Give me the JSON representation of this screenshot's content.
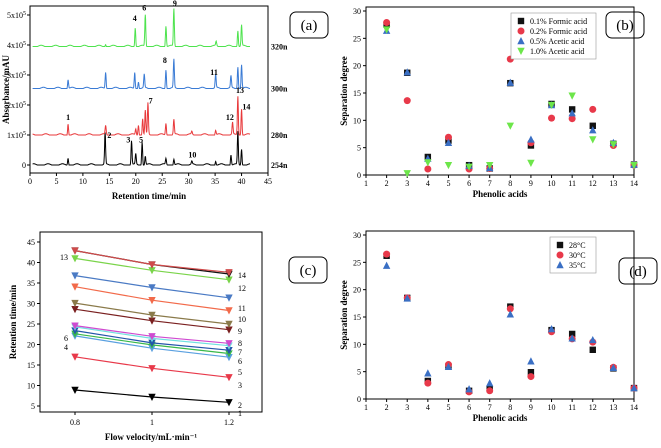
{
  "chart_data": [
    {
      "type": "line",
      "panel_label": "(a)",
      "xlabel": "Retention time/min",
      "ylabel": "Absorbance/mAU",
      "xlim": [
        0,
        45
      ],
      "xticks": [
        "0",
        "5",
        "10",
        "15",
        "20",
        "25",
        "30",
        "35",
        "40",
        "45"
      ],
      "yticks": [
        "0",
        "1x10^5",
        "2x10^5",
        "3x10^5",
        "4x10^5",
        "5x10^5"
      ],
      "series": [
        {
          "name": "254n",
          "color": "#000000",
          "offset": 0,
          "peaks": [
            [
              7.2,
              0.25
            ],
            [
              14.2,
              1.05
            ],
            [
              19.2,
              0.8
            ],
            [
              20.0,
              0.35
            ],
            [
              21.2,
              0.8
            ],
            [
              21.8,
              0.3
            ],
            [
              25.7,
              0.2
            ],
            [
              27.2,
              0.2
            ],
            [
              30.6,
              0.1
            ],
            [
              35.1,
              0.15
            ],
            [
              38.0,
              0.35
            ],
            [
              39.3,
              1.1
            ],
            [
              40.0,
              0.55
            ]
          ]
        },
        {
          "name": "280n",
          "color": "#e8393b",
          "offset": 1.0,
          "peaks": [
            [
              7.2,
              0.4
            ],
            [
              14.3,
              0.3
            ],
            [
              20.0,
              0.2
            ],
            [
              20.5,
              0.35
            ],
            [
              21.3,
              0.55
            ],
            [
              21.8,
              0.8
            ],
            [
              22.3,
              1.05
            ],
            [
              25.7,
              0.4
            ],
            [
              27.2,
              0.5
            ],
            [
              30.6,
              0.1
            ],
            [
              35.1,
              0.15
            ],
            [
              38.3,
              0.4
            ],
            [
              39.3,
              1.3
            ],
            [
              40.0,
              0.9
            ]
          ]
        },
        {
          "name": "300n",
          "color": "#3a7bd5",
          "offset": 2.55,
          "peaks": [
            [
              7.2,
              0.3
            ],
            [
              14.3,
              0.55
            ],
            [
              19.8,
              0.55
            ],
            [
              20.5,
              0.25
            ],
            [
              21.6,
              0.45
            ],
            [
              25.7,
              0.65
            ],
            [
              27.2,
              0.95
            ],
            [
              35.1,
              0.45
            ],
            [
              38.0,
              0.4
            ],
            [
              39.3,
              0.75
            ],
            [
              40.0,
              0.8
            ]
          ]
        },
        {
          "name": "320n",
          "color": "#4ee34e",
          "offset": 3.95,
          "peaks": [
            [
              14.3,
              0.1
            ],
            [
              19.9,
              0.65
            ],
            [
              21.8,
              1.05
            ],
            [
              25.7,
              0.7
            ],
            [
              27.2,
              1.25
            ],
            [
              35.2,
              0.15
            ],
            [
              39.3,
              0.55
            ],
            [
              40.0,
              0.7
            ]
          ]
        }
      ],
      "annotations": [
        {
          "text": "1",
          "x": 7.2,
          "y": 1.5
        },
        {
          "text": "2",
          "x": 15.0,
          "y": 0.9
        },
        {
          "text": "3",
          "x": 18.6,
          "y": 0.75
        },
        {
          "text": "4",
          "x": 19.8,
          "y": 4.8
        },
        {
          "text": "5",
          "x": 21.0,
          "y": 0.75
        },
        {
          "text": "6",
          "x": 21.6,
          "y": 5.15
        },
        {
          "text": "7",
          "x": 22.8,
          "y": 2.05
        },
        {
          "text": "8",
          "x": 25.5,
          "y": 3.4
        },
        {
          "text": "9",
          "x": 27.4,
          "y": 5.3
        },
        {
          "text": "10",
          "x": 30.7,
          "y": 0.25
        },
        {
          "text": "11",
          "x": 34.8,
          "y": 3.0
        },
        {
          "text": "12",
          "x": 37.8,
          "y": 1.5
        },
        {
          "text": "13",
          "x": 39.7,
          "y": 2.4
        },
        {
          "text": "14",
          "x": 40.9,
          "y": 1.85
        }
      ]
    },
    {
      "type": "scatter",
      "panel_label": "(b)",
      "xlabel": "Phenolic acids",
      "ylabel": "Separation degree",
      "xlim": [
        1,
        14
      ],
      "ylim": [
        0,
        30
      ],
      "xticks": [
        "1",
        "2",
        "3",
        "4",
        "5",
        "6",
        "7",
        "8",
        "9",
        "10",
        "11",
        "12",
        "13",
        "14"
      ],
      "yticks": [
        "0",
        "5",
        "10",
        "15",
        "20",
        "25",
        "30"
      ],
      "series": [
        {
          "name": "0.1% Formic acid",
          "color": "#111111",
          "marker": "square",
          "x": [
            2,
            3,
            4,
            5,
            6,
            7,
            8,
            9,
            10,
            11,
            12,
            13,
            14
          ],
          "values": [
            27.5,
            18.7,
            3.3,
            6.3,
            1.8,
            1.2,
            16.8,
            5.4,
            13.0,
            12.0,
            9.0,
            5.7,
            1.9
          ]
        },
        {
          "name": "0.2% Formic acid",
          "color": "#e8394a",
          "marker": "circle",
          "x": [
            2,
            3,
            4,
            5,
            6,
            7,
            8,
            9,
            10,
            11,
            12,
            13,
            14
          ],
          "values": [
            27.9,
            13.6,
            1.1,
            6.9,
            1.1,
            1.2,
            21.2,
            5.9,
            10.4,
            10.3,
            12.0,
            5.4,
            1.8
          ]
        },
        {
          "name": "0.5% Acetic acid",
          "color": "#3a6fc4",
          "marker": "triangle-up",
          "x": [
            2,
            3,
            4,
            5,
            6,
            7,
            8,
            9,
            10,
            11,
            12,
            13,
            14
          ],
          "values": [
            26.4,
            18.8,
            3.0,
            5.9,
            1.7,
            1.3,
            16.9,
            6.5,
            12.8,
            11.3,
            8.2,
            5.9,
            1.9
          ]
        },
        {
          "name": "1.0% Acetic acid",
          "color": "#6de64a",
          "marker": "triangle-down",
          "x": [
            2,
            3,
            4,
            5,
            6,
            7,
            8,
            9,
            10,
            11,
            12,
            13,
            14
          ],
          "values": [
            26.6,
            0.3,
            2.3,
            1.8,
            1.5,
            1.8,
            9.0,
            2.2,
            12.8,
            14.5,
            6.5,
            5.6,
            1.8
          ]
        }
      ],
      "legend": "top-right"
    },
    {
      "type": "line",
      "panel_label": "(c)",
      "xlabel": "Flow velocity/mL·min⁻¹",
      "ylabel": "Retention time/min",
      "x": [
        0.8,
        1.0,
        1.2
      ],
      "xticks": [
        "0.8",
        "1",
        "1.2"
      ],
      "yticks": [
        "5",
        "10",
        "15",
        "20",
        "25",
        "30",
        "35",
        "40",
        "45"
      ],
      "ylim": [
        5,
        45
      ],
      "series": [
        {
          "name": "1",
          "color": "#000000",
          "values": [
            8.9,
            7.2,
            5.9
          ]
        },
        {
          "name": "2",
          "color": "#e8394a",
          "values": [
            17.0,
            14.2,
            12.0
          ]
        },
        {
          "name": "3",
          "color": "#5aa0e0",
          "values": [
            22.1,
            19.1,
            16.9
          ]
        },
        {
          "name": "4",
          "color": "#39b84a",
          "values": [
            22.6,
            19.9,
            17.8
          ]
        },
        {
          "name": "5",
          "color": "#2255aa",
          "values": [
            23.4,
            20.4,
            18.6
          ]
        },
        {
          "name": "6",
          "color": "#6fe0e0",
          "values": [
            24.3,
            21.5,
            19.7
          ]
        },
        {
          "name": "7",
          "color": "#d04ad0",
          "values": [
            24.6,
            22.0,
            20.3
          ]
        },
        {
          "name": "8",
          "color": "#7a2020",
          "values": [
            28.6,
            25.8,
            23.6
          ]
        },
        {
          "name": "9",
          "color": "#8a7a4a",
          "values": [
            30.1,
            27.2,
            25.0
          ]
        },
        {
          "name": "10",
          "color": "#f26a4a",
          "values": [
            34.1,
            30.8,
            28.3
          ]
        },
        {
          "name": "11",
          "color": "#4a7ac4",
          "values": [
            36.8,
            33.9,
            31.4
          ]
        },
        {
          "name": "12",
          "color": "#7ad44a",
          "values": [
            41.0,
            38.1,
            35.8
          ]
        },
        {
          "name": "13",
          "color": "#111111",
          "values": [
            42.9,
            39.5,
            37.2
          ]
        },
        {
          "name": "14",
          "color": "#d04a4a",
          "values": [
            42.9,
            39.5,
            37.6
          ]
        }
      ],
      "left_labels": [
        "13",
        "6",
        "4"
      ],
      "right_labels": [
        "14",
        "12",
        "11",
        "10",
        "9",
        "8",
        "7",
        "6",
        "5",
        "3",
        "2",
        "1"
      ]
    },
    {
      "type": "scatter",
      "panel_label": "(d)",
      "xlabel": "Phenolic acids",
      "ylabel": "Separation degree",
      "xlim": [
        1,
        14
      ],
      "ylim": [
        0,
        30
      ],
      "xticks": [
        "1",
        "2",
        "3",
        "4",
        "5",
        "6",
        "7",
        "8",
        "9",
        "10",
        "11",
        "12",
        "13",
        "14"
      ],
      "yticks": [
        "0",
        "5",
        "10",
        "15",
        "20",
        "25",
        "30"
      ],
      "series": [
        {
          "name": "28°C",
          "color": "#111111",
          "marker": "square",
          "x": [
            2,
            3,
            4,
            5,
            6,
            7,
            8,
            9,
            10,
            11,
            12,
            13,
            14
          ],
          "values": [
            26.2,
            18.5,
            3.3,
            5.9,
            1.5,
            1.8,
            16.9,
            4.9,
            12.6,
            11.9,
            9.0,
            5.6,
            2.0
          ]
        },
        {
          "name": "30°C",
          "color": "#e8394a",
          "marker": "circle",
          "x": [
            2,
            3,
            4,
            5,
            6,
            7,
            8,
            9,
            10,
            11,
            12,
            13,
            14
          ],
          "values": [
            26.5,
            18.5,
            2.9,
            6.3,
            1.3,
            1.5,
            16.5,
            4.1,
            12.3,
            11.0,
            10.4,
            5.8,
            2.0
          ]
        },
        {
          "name": "35°C",
          "color": "#3a6fc4",
          "marker": "triangle-up",
          "x": [
            2,
            3,
            4,
            5,
            6,
            7,
            8,
            9,
            10,
            11,
            12,
            13,
            14
          ],
          "values": [
            24.4,
            18.4,
            4.7,
            5.9,
            1.8,
            2.9,
            15.5,
            6.9,
            12.8,
            11.1,
            10.8,
            5.7,
            2.0
          ]
        }
      ],
      "legend": "top-right"
    }
  ]
}
